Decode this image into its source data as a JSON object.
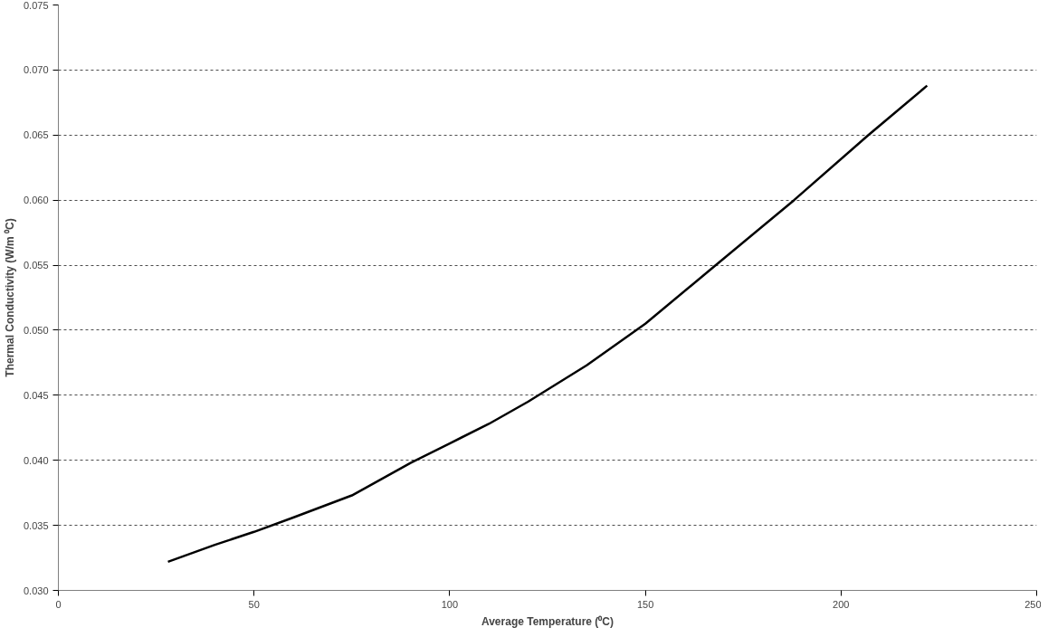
{
  "chart_data": {
    "type": "line",
    "xlabel": "Average Temperature (⁰C)",
    "ylabel": "Thermal Conductivity (W/m ⁰C)",
    "x": [
      28,
      40,
      50,
      60,
      75,
      90,
      100,
      110,
      120,
      135,
      150,
      168,
      188,
      207,
      222
    ],
    "series": [
      {
        "color": "#000000",
        "values": [
          0.0322,
          0.0335,
          0.0345,
          0.0356,
          0.0373,
          0.0398,
          0.0413,
          0.0428,
          0.0445,
          0.0473,
          0.0505,
          0.055,
          0.06,
          0.065,
          0.0688
        ]
      }
    ],
    "xlim": [
      0,
      250
    ],
    "xticks": [
      0,
      50,
      100,
      150,
      200,
      250
    ],
    "ylim": [
      0.03,
      0.075
    ],
    "yticks": [
      {
        "value": 0.03,
        "label": "0.030"
      },
      {
        "value": 0.035,
        "label": "0.035"
      },
      {
        "value": 0.04,
        "label": "0.040"
      },
      {
        "value": 0.045,
        "label": "0.045"
      },
      {
        "value": 0.05,
        "label": "0.050"
      },
      {
        "value": 0.055,
        "label": "0.055"
      },
      {
        "value": 0.06,
        "label": "0.060"
      },
      {
        "value": 0.065,
        "label": "0.065"
      },
      {
        "value": 0.07,
        "label": "0.070"
      },
      {
        "value": 0.075,
        "label": "0.075"
      }
    ],
    "grid": "y",
    "line_style": "solid"
  }
}
